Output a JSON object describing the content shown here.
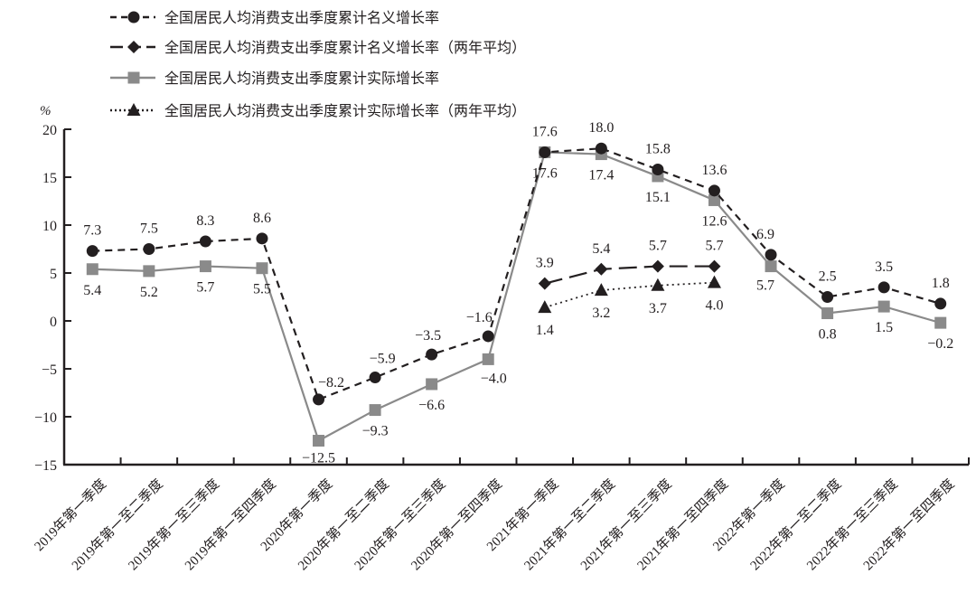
{
  "chart_data": {
    "type": "line",
    "title": "",
    "xlabel": "",
    "ylabel": "%",
    "ylim": [
      -15,
      20
    ],
    "yticks": [
      20,
      15,
      10,
      5,
      0,
      -5,
      -10,
      -15
    ],
    "ytick_labels": [
      "20",
      "15",
      "10",
      "5",
      "0",
      "−5",
      "−10",
      "−15"
    ],
    "grid": false,
    "legend_position": "top-left",
    "categories": [
      "2019年第一季度",
      "2019年第一至二季度",
      "2019年第一至三季度",
      "2019年第一至四季度",
      "2020年第一季度",
      "2020年第一至二季度",
      "2020年第一至三季度",
      "2020年第一至四季度",
      "2021年第一季度",
      "2021年第一至二季度",
      "2021年第一至三季度",
      "2021年第一至四季度",
      "2022年第一季度",
      "2022年第一至二季度",
      "2022年第一至三季度",
      "2022年第一至四季度"
    ],
    "series": [
      {
        "name": "全国居民人均消费支出季度累计名义增长率",
        "style": "dashed",
        "marker": "circle",
        "color": "#231f20",
        "values": [
          7.3,
          7.5,
          8.3,
          8.6,
          -8.2,
          -5.9,
          -3.5,
          -1.6,
          17.6,
          18.0,
          15.8,
          13.6,
          6.9,
          2.5,
          3.5,
          1.8
        ],
        "labels": [
          "7.3",
          "7.5",
          "8.3",
          "8.6",
          "−8.2",
          "−5.9",
          "−3.5",
          "−1.6",
          "17.6",
          "18.0",
          "15.8",
          "13.6",
          "6.9",
          "2.5",
          "3.5",
          "1.8"
        ]
      },
      {
        "name": "全国居民人均消费支出季度累计名义增长率（两年平均）",
        "style": "long-dash",
        "marker": "diamond",
        "color": "#231f20",
        "values": [
          null,
          null,
          null,
          null,
          null,
          null,
          null,
          null,
          3.9,
          5.4,
          5.7,
          5.7,
          null,
          null,
          null,
          null
        ],
        "labels": [
          "",
          "",
          "",
          "",
          "",
          "",
          "",
          "",
          "3.9",
          "5.4",
          "5.7",
          "5.7",
          "",
          "",
          "",
          ""
        ]
      },
      {
        "name": "全国居民人均消费支出季度累计实际增长率",
        "style": "solid",
        "marker": "square",
        "color": "#8a8a8a",
        "values": [
          5.4,
          5.2,
          5.7,
          5.5,
          -12.5,
          -9.3,
          -6.6,
          -4.0,
          17.6,
          17.4,
          15.1,
          12.6,
          5.7,
          0.8,
          1.5,
          -0.2
        ],
        "labels": [
          "5.4",
          "5.2",
          "5.7",
          "5.5",
          "−12.5",
          "−9.3",
          "−6.6",
          "−4.0",
          "17.6",
          "17.4",
          "15.1",
          "12.6",
          "5.7",
          "0.8",
          "1.5",
          "−0.2"
        ]
      },
      {
        "name": "全国居民人均消费支出季度累计实际增长率（两年平均）",
        "style": "dotted",
        "marker": "triangle",
        "color": "#231f20",
        "values": [
          null,
          null,
          null,
          null,
          null,
          null,
          null,
          null,
          1.4,
          3.2,
          3.7,
          4.0,
          null,
          null,
          null,
          null
        ],
        "labels": [
          "",
          "",
          "",
          "",
          "",
          "",
          "",
          "",
          "1.4",
          "3.2",
          "3.7",
          "4.0",
          "",
          "",
          "",
          ""
        ]
      }
    ]
  },
  "legend": {
    "items": [
      {
        "label": "全国居民人均消费支出季度累计名义增长率"
      },
      {
        "label": "全国居民人均消费支出季度累计名义增长率（两年平均）"
      },
      {
        "label": "全国居民人均消费支出季度累计实际增长率"
      },
      {
        "label": "全国居民人均消费支出季度累计实际增长率（两年平均）"
      }
    ]
  },
  "axis": {
    "unit": "%"
  },
  "colors": {
    "ink": "#231f20",
    "gray": "#8a8a8a"
  }
}
